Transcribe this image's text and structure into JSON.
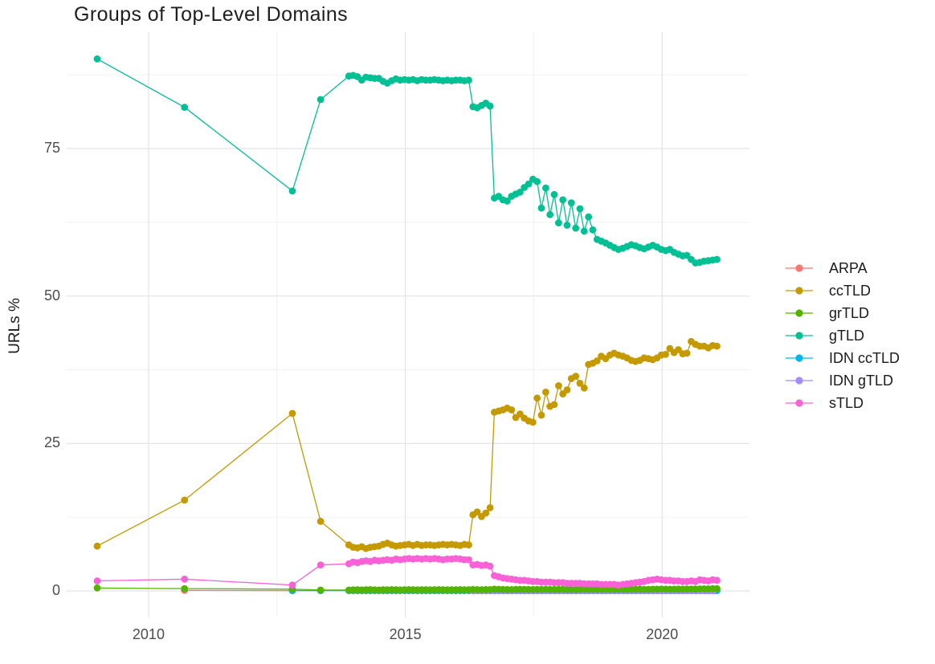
{
  "page": {
    "background": "#ffffff"
  },
  "chart_data": {
    "type": "scatter",
    "title": "Groups of Top-Level Domains",
    "xlabel": "",
    "ylabel": "URLs %",
    "grid": true,
    "legend_position": "right",
    "xlim": [
      2008.39,
      2021.7
    ],
    "ylim": [
      -4.49,
      94.74
    ],
    "x_ticks": [
      {
        "label": "2010",
        "year": 2010
      },
      {
        "label": "2015",
        "year": 2015
      },
      {
        "label": "2020",
        "year": 2020
      }
    ],
    "x_minor": [
      2012.5,
      2017.5
    ],
    "y_ticks": [
      {
        "label": "0",
        "value": 0
      },
      {
        "label": "25",
        "value": 25
      },
      {
        "label": "50",
        "value": 50
      },
      {
        "label": "75",
        "value": 75
      }
    ],
    "y_minor": [
      12.5,
      37.5,
      62.5,
      87.5
    ],
    "series": [
      {
        "name": "ARPA",
        "color": "#F8766D",
        "segments": [
          {
            "points": [
              [
                2010.7,
                0.1
              ],
              [
                2012.8,
                0.06
              ]
            ]
          }
        ]
      },
      {
        "name": "ccTLD",
        "color": "#C49A00",
        "segments": [
          {
            "points": [
              [
                2009.0,
                7.6
              ],
              [
                2010.7,
                15.4
              ],
              [
                2012.8,
                30.1
              ],
              [
                2013.35,
                11.8
              ]
            ]
          },
          {
            "start": 2013.9,
            "step": 0.08333,
            "values": [
              7.8,
              7.4,
              7.3,
              7.5,
              7.2,
              7.4,
              7.5,
              7.6,
              7.9,
              8.1,
              7.8,
              7.6,
              7.7,
              7.8,
              7.9,
              7.7,
              7.9,
              7.7,
              7.8,
              7.8,
              7.7,
              7.8,
              7.9,
              7.8,
              7.9,
              7.8,
              7.7,
              7.9,
              7.8,
              12.9,
              13.4,
              12.6,
              13.2,
              14.1,
              30.3,
              30.5,
              30.7,
              31.0,
              30.7,
              29.4,
              30.0,
              29.3,
              28.8,
              28.6,
              32.7,
              29.8,
              33.7,
              31.3,
              31.6,
              34.8,
              33.4,
              34.1,
              36.0,
              36.4,
              35.2,
              34.4,
              38.4,
              38.6,
              39.0,
              39.8,
              39.4,
              40.0,
              40.3,
              40.0,
              39.8,
              39.5,
              39.1,
              38.9,
              39.1,
              39.5,
              39.4,
              39.2,
              39.5,
              40.0,
              40.1,
              41.1,
              40.4,
              40.9,
              40.2,
              40.3,
              42.3,
              41.8,
              41.5,
              41.5,
              41.2,
              41.6,
              41.5
            ]
          }
        ]
      },
      {
        "name": "grTLD",
        "color": "#53B400",
        "segments": [
          {
            "points": [
              [
                2009.0,
                0.5
              ],
              [
                2010.7,
                0.4
              ],
              [
                2012.8,
                0.3
              ],
              [
                2013.35,
                0.15
              ]
            ]
          },
          {
            "start": 2013.9,
            "step": 0.08333,
            "values": [
              0.15,
              0.18,
              0.2,
              0.16,
              0.2,
              0.22,
              0.18,
              0.15,
              0.2,
              0.18,
              0.22,
              0.2,
              0.17,
              0.2,
              0.22,
              0.2,
              0.18,
              0.2,
              0.21,
              0.19,
              0.2,
              0.22,
              0.2,
              0.18,
              0.2,
              0.2,
              0.22,
              0.2,
              0.2,
              0.25,
              0.22,
              0.2,
              0.24,
              0.22,
              0.3,
              0.28,
              0.25,
              0.24,
              0.22,
              0.25,
              0.28,
              0.26,
              0.25,
              0.24,
              0.26,
              0.25,
              0.27,
              0.25,
              0.24,
              0.26,
              0.28,
              0.25,
              0.26,
              0.24,
              0.25,
              0.27,
              0.26,
              0.25,
              0.26,
              0.28,
              0.27,
              0.26,
              0.25,
              0.27,
              0.28,
              0.26,
              0.27,
              0.28,
              0.3,
              0.28,
              0.27,
              0.29,
              0.3,
              0.31,
              0.3,
              0.29,
              0.3,
              0.32,
              0.3,
              0.31,
              0.33,
              0.32,
              0.34,
              0.35,
              0.36,
              0.38,
              0.4
            ]
          }
        ]
      },
      {
        "name": "gTLD",
        "color": "#00C094",
        "segments": [
          {
            "points": [
              [
                2009.0,
                90.2
              ],
              [
                2010.7,
                82.0
              ],
              [
                2012.8,
                67.8
              ],
              [
                2013.35,
                83.3
              ]
            ]
          },
          {
            "start": 2013.9,
            "step": 0.08333,
            "values": [
              87.3,
              87.4,
              87.2,
              86.6,
              87.1,
              87.0,
              86.9,
              86.9,
              86.4,
              86.1,
              86.5,
              86.8,
              86.6,
              86.7,
              86.6,
              86.7,
              86.5,
              86.7,
              86.6,
              86.6,
              86.7,
              86.6,
              86.5,
              86.6,
              86.5,
              86.6,
              86.6,
              86.5,
              86.6,
              82.1,
              81.9,
              82.3,
              82.7,
              82.2,
              66.6,
              66.9,
              66.3,
              66.1,
              66.9,
              67.3,
              67.6,
              68.4,
              69.0,
              69.8,
              69.4,
              64.9,
              68.3,
              63.8,
              67.2,
              62.4,
              66.3,
              62.0,
              65.8,
              61.5,
              64.8,
              61.0,
              63.4,
              61.2,
              59.6,
              59.3,
              59.0,
              58.6,
              58.2,
              57.9,
              58.1,
              58.4,
              58.7,
              58.5,
              58.2,
              58.0,
              58.3,
              58.6,
              58.3,
              57.9,
              57.7,
              57.9,
              57.4,
              57.1,
              56.8,
              56.9,
              56.2,
              55.6,
              55.7,
              55.9,
              56.0,
              56.1,
              56.2
            ]
          }
        ]
      },
      {
        "name": "IDN ccTLD",
        "color": "#00B6EB",
        "segments": [
          {
            "points": [
              [
                2012.8,
                0.05
              ],
              [
                2013.35,
                0.05
              ]
            ]
          },
          {
            "start": 2013.9,
            "step": 0.08333,
            "const": 0.05,
            "count": 87
          }
        ]
      },
      {
        "name": "IDN gTLD",
        "color": "#A58AFF",
        "segments": [
          {
            "start": 2016.33,
            "step": 0.08333,
            "const": 0.02,
            "count": 57
          }
        ]
      },
      {
        "name": "sTLD",
        "color": "#FB61D7",
        "segments": [
          {
            "points": [
              [
                2009.0,
                1.7
              ],
              [
                2010.7,
                2.0
              ],
              [
                2012.8,
                1.0
              ],
              [
                2013.35,
                4.4
              ]
            ]
          },
          {
            "start": 2013.9,
            "step": 0.08333,
            "values": [
              4.6,
              4.9,
              4.8,
              5.0,
              5.1,
              5.0,
              5.2,
              5.1,
              5.2,
              5.3,
              5.2,
              5.4,
              5.3,
              5.4,
              5.5,
              5.4,
              5.5,
              5.4,
              5.5,
              5.4,
              5.5,
              5.4,
              5.3,
              5.4,
              5.4,
              5.5,
              5.4,
              5.3,
              5.3,
              4.4,
              4.5,
              4.3,
              4.4,
              4.2,
              2.6,
              2.4,
              2.2,
              2.1,
              2.0,
              1.9,
              1.8,
              1.8,
              1.7,
              1.6,
              1.6,
              1.5,
              1.5,
              1.5,
              1.4,
              1.4,
              1.4,
              1.3,
              1.3,
              1.3,
              1.3,
              1.2,
              1.2,
              1.2,
              1.2,
              1.1,
              1.1,
              1.1,
              1.1,
              1.0,
              1.1,
              1.2,
              1.3,
              1.4,
              1.5,
              1.6,
              1.8,
              1.9,
              2.0,
              1.9,
              1.8,
              1.8,
              1.7,
              1.7,
              1.6,
              1.6,
              1.7,
              1.6,
              1.9,
              1.8,
              1.7,
              1.9,
              1.8
            ]
          }
        ]
      }
    ]
  }
}
